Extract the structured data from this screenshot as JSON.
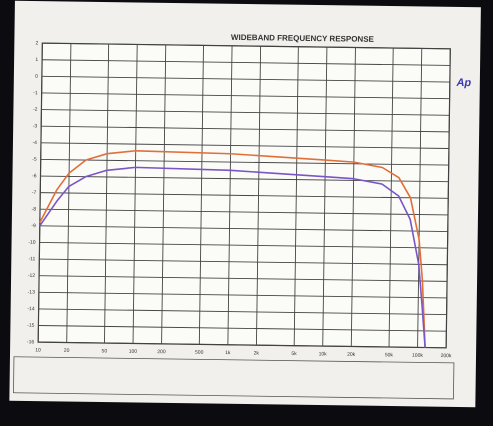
{
  "chart_data": {
    "type": "line",
    "title": "WIDEBAND FREQUENCY RESPONSE",
    "logo": "Ap",
    "xscale": "log",
    "grid": true,
    "x": [
      10,
      15,
      20,
      30,
      50,
      100,
      1000,
      10000,
      20000,
      40000,
      60000,
      80000,
      100000,
      110000,
      120000
    ],
    "series": [
      {
        "color": "#e0703a",
        "values": [
          -8.8,
          -6.8,
          -5.8,
          -5.0,
          -4.6,
          -4.4,
          -4.5,
          -4.8,
          -4.9,
          -5.2,
          -5.8,
          -7.0,
          -9.5,
          -12.0,
          -16.0
        ]
      },
      {
        "color": "#7a55c8",
        "values": [
          -9.0,
          -7.5,
          -6.6,
          -6.0,
          -5.6,
          -5.4,
          -5.5,
          -5.8,
          -5.9,
          -6.2,
          -6.9,
          -8.3,
          -11.0,
          -13.5,
          -16.0
        ]
      }
    ],
    "xlim": [
      10,
      200000
    ],
    "xticks": [
      10,
      20,
      50,
      100,
      200,
      500,
      {
        "value": 1000,
        "label": "1k"
      },
      {
        "value": 2000,
        "label": "2k"
      },
      {
        "value": 5000,
        "label": "5k"
      },
      {
        "value": 10000,
        "label": "10k"
      },
      {
        "value": 20000,
        "label": "20k"
      },
      {
        "value": 50000,
        "label": "50k"
      },
      {
        "value": 100000,
        "label": "100k"
      },
      {
        "value": 200000,
        "label": "200k"
      }
    ],
    "ylim": [
      -16,
      2
    ],
    "yticks": [
      -16,
      -15,
      -14,
      -13,
      -12,
      -11,
      -10,
      -9,
      -8,
      -7,
      -6,
      -5,
      -4,
      -3,
      -2,
      -1,
      0,
      1,
      2
    ]
  }
}
